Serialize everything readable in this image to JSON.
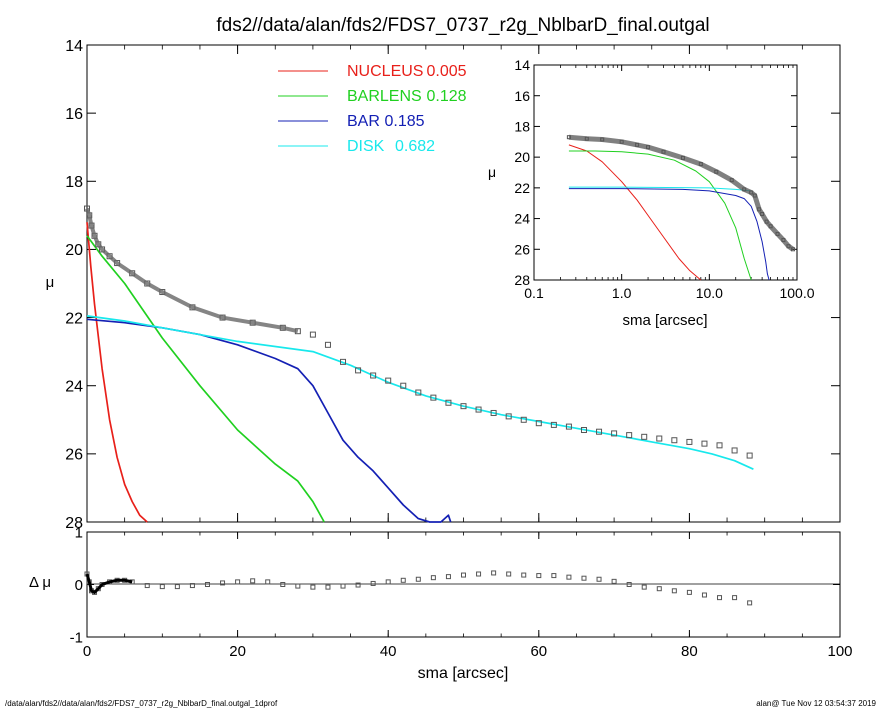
{
  "title": "fds2//data/alan/fds2/FDS7_0737_r2g_NblbarD_final.outgal",
  "footer_left": "/data/alan/fds2//data/alan/fds2/FDS7_0737_r2g_NblbarD_final.outgal_1dprof",
  "footer_right": "alan@  Tue Nov 12 03:54:37 2019",
  "colors": {
    "nucleus": "#e8201a",
    "barlens": "#20d020",
    "bar": "#1420b4",
    "disk": "#18e8ec",
    "data": "#555555",
    "axis": "#000000"
  },
  "chart_data": [
    {
      "name": "main-profile",
      "type": "line",
      "xlabel": "sma [arcsec]",
      "ylabel": "μ",
      "xlim": [
        0,
        100
      ],
      "ylim": [
        28,
        14
      ],
      "xticks": [
        0,
        20,
        40,
        60,
        80,
        100
      ],
      "yticks": [
        14,
        16,
        18,
        20,
        22,
        24,
        26,
        28
      ],
      "legend": [
        {
          "label": "NUCLEUS",
          "value": "0.005",
          "color_key": "nucleus"
        },
        {
          "label": "BARLENS",
          "value": "0.128",
          "color_key": "barlens"
        },
        {
          "label": "BAR",
          "value": "0.185",
          "color_key": "bar"
        },
        {
          "label": "DISK",
          "value": "0.682",
          "color_key": "disk"
        }
      ],
      "series": [
        {
          "name": "NUCLEUS",
          "color_key": "nucleus",
          "x": [
            0,
            0.5,
            1,
            2,
            3,
            4,
            5,
            6,
            7,
            8
          ],
          "y": [
            19.2,
            20.5,
            21.6,
            23.5,
            25.0,
            26.1,
            26.9,
            27.4,
            27.8,
            28.0
          ]
        },
        {
          "name": "BARLENS",
          "color_key": "barlens",
          "x": [
            0,
            2,
            5,
            10,
            15,
            20,
            25,
            28,
            30,
            31.5
          ],
          "y": [
            19.6,
            20.2,
            21.0,
            22.6,
            24.0,
            25.3,
            26.3,
            26.8,
            27.4,
            28.0
          ]
        },
        {
          "name": "BAR",
          "color_key": "bar",
          "x": [
            0,
            5,
            10,
            15,
            20,
            25,
            28,
            30,
            32,
            34,
            36,
            38,
            40,
            42,
            44,
            45.5,
            47,
            48,
            48.3
          ],
          "y": [
            22.05,
            22.15,
            22.3,
            22.5,
            22.8,
            23.2,
            23.5,
            24.0,
            24.8,
            25.6,
            26.1,
            26.5,
            27.0,
            27.5,
            27.9,
            28.0,
            28.0,
            27.8,
            28.0
          ]
        },
        {
          "name": "DISK",
          "color_key": "disk",
          "x": [
            0,
            5,
            10,
            20,
            30,
            35,
            40,
            45,
            50,
            55,
            60,
            65,
            70,
            75,
            80,
            83,
            86,
            88.5
          ],
          "y": [
            21.95,
            22.1,
            22.3,
            22.7,
            23.0,
            23.4,
            23.9,
            24.3,
            24.6,
            24.85,
            25.05,
            25.25,
            25.45,
            25.65,
            25.85,
            26.0,
            26.2,
            26.45
          ]
        },
        {
          "name": "DATA",
          "color_key": "data",
          "marker": "square",
          "x": [
            0,
            0.3,
            0.6,
            1.0,
            1.5,
            2,
            3,
            4,
            6,
            8,
            10,
            14,
            18,
            22,
            26,
            28,
            30,
            32,
            34,
            36,
            38,
            40,
            42,
            44,
            46,
            48,
            50,
            52,
            54,
            56,
            58,
            60,
            62,
            64,
            66,
            68,
            70,
            72,
            74,
            76,
            78,
            80,
            82,
            84,
            86,
            88
          ],
          "y": [
            18.8,
            19.0,
            19.3,
            19.6,
            19.85,
            20.0,
            20.2,
            20.4,
            20.7,
            21.0,
            21.25,
            21.7,
            22.0,
            22.15,
            22.3,
            22.4,
            22.5,
            22.8,
            23.3,
            23.55,
            23.7,
            23.85,
            24.0,
            24.2,
            24.35,
            24.5,
            24.6,
            24.7,
            24.8,
            24.9,
            25.0,
            25.1,
            25.15,
            25.2,
            25.3,
            25.35,
            25.4,
            25.45,
            25.5,
            25.55,
            25.6,
            25.65,
            25.7,
            25.75,
            25.9,
            26.05
          ]
        }
      ]
    },
    {
      "name": "inset-log-profile",
      "type": "line",
      "xlabel": "sma [arcsec]",
      "ylabel": "μ",
      "xscale": "log",
      "xlim": [
        0.1,
        100
      ],
      "ylim": [
        28,
        14
      ],
      "xticks": [
        0.1,
        1,
        10,
        100
      ],
      "xticklabels": [
        "0.1",
        "1.0",
        "10.0",
        "100.0"
      ],
      "yticks": [
        14,
        16,
        18,
        20,
        22,
        24,
        26,
        28
      ],
      "series": [
        {
          "name": "NUCLEUS",
          "color_key": "nucleus",
          "x": [
            0.25,
            0.4,
            0.6,
            1.0,
            1.5,
            2.0,
            3.0,
            4.5,
            6.0,
            8.0
          ],
          "y": [
            19.2,
            19.6,
            20.3,
            21.6,
            22.8,
            23.8,
            25.2,
            26.6,
            27.4,
            28.0
          ]
        },
        {
          "name": "BARLENS",
          "color_key": "barlens",
          "x": [
            0.25,
            0.5,
            1.0,
            2.0,
            4.0,
            7.0,
            10,
            15,
            20,
            25,
            30
          ],
          "y": [
            19.6,
            19.6,
            19.65,
            19.8,
            20.2,
            20.9,
            21.6,
            23.0,
            24.6,
            26.6,
            28.0
          ]
        },
        {
          "name": "BAR",
          "color_key": "bar",
          "x": [
            0.25,
            1.0,
            5.0,
            10,
            20,
            25,
            30,
            35,
            40,
            44,
            46,
            48
          ],
          "y": [
            22.05,
            22.05,
            22.1,
            22.2,
            22.5,
            22.7,
            23.2,
            24.2,
            25.5,
            26.8,
            27.6,
            28.0
          ]
        },
        {
          "name": "DISK",
          "color_key": "disk",
          "x": [
            0.25,
            1.0,
            5.0,
            10,
            20,
            25,
            30
          ],
          "y": [
            21.95,
            21.95,
            21.98,
            22.0,
            22.1,
            22.15,
            22.2
          ]
        },
        {
          "name": "DATA",
          "color_key": "data",
          "marker": "square",
          "x": [
            0.25,
            0.4,
            0.6,
            1.0,
            1.5,
            2,
            3,
            5,
            8,
            12,
            18,
            25,
            30,
            33,
            37,
            40,
            45,
            50,
            60,
            70,
            80,
            90
          ],
          "y": [
            18.7,
            18.8,
            18.85,
            19.0,
            19.2,
            19.35,
            19.65,
            20.05,
            20.45,
            20.95,
            21.5,
            22.1,
            22.3,
            22.5,
            23.4,
            23.7,
            24.2,
            24.5,
            25.0,
            25.4,
            25.8,
            26.0
          ]
        }
      ]
    },
    {
      "name": "residuals",
      "type": "scatter",
      "xlabel": "sma [arcsec]",
      "ylabel": "Δ μ",
      "xlim": [
        0,
        100
      ],
      "ylim": [
        -1,
        1
      ],
      "xticks": [
        0,
        20,
        40,
        60,
        80,
        100
      ],
      "yticks": [
        -1,
        0,
        1
      ],
      "series": [
        {
          "name": "RESIDUAL",
          "color_key": "data",
          "marker": "square",
          "x": [
            0,
            0.3,
            0.6,
            1.0,
            1.5,
            2,
            3,
            4,
            5,
            6,
            8,
            10,
            12,
            14,
            16,
            18,
            20,
            22,
            24,
            26,
            28,
            30,
            32,
            34,
            36,
            38,
            40,
            42,
            44,
            46,
            48,
            50,
            52,
            54,
            56,
            58,
            60,
            62,
            64,
            66,
            68,
            70,
            72,
            74,
            76,
            78,
            80,
            82,
            84,
            86,
            88
          ],
          "y": [
            0.2,
            0.05,
            -0.12,
            -0.15,
            -0.08,
            0.0,
            0.05,
            0.08,
            0.08,
            0.05,
            -0.02,
            -0.04,
            -0.04,
            -0.02,
            0.0,
            0.03,
            0.05,
            0.07,
            0.05,
            0.0,
            -0.03,
            -0.05,
            -0.05,
            -0.03,
            -0.01,
            0.02,
            0.05,
            0.08,
            0.1,
            0.13,
            0.15,
            0.18,
            0.2,
            0.22,
            0.2,
            0.18,
            0.17,
            0.17,
            0.14,
            0.12,
            0.1,
            0.06,
            0.0,
            -0.05,
            -0.08,
            -0.12,
            -0.15,
            -0.2,
            -0.25,
            -0.25,
            -0.35
          ]
        }
      ]
    }
  ]
}
